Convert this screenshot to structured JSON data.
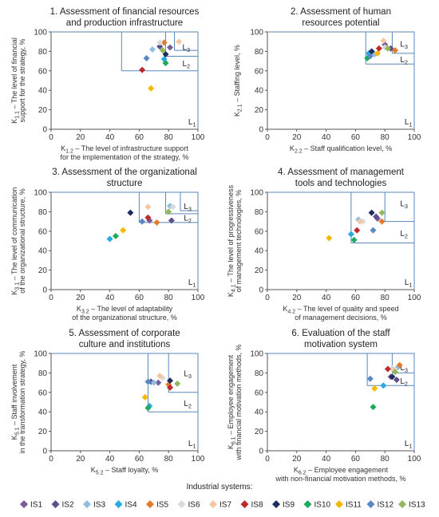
{
  "legend": {
    "title": "Industrial systems:",
    "entries": [
      {
        "name": "IS1",
        "color": "#7a5c99"
      },
      {
        "name": "IS2",
        "color": "#5b4f8c"
      },
      {
        "name": "IS3",
        "color": "#8fbfe0"
      },
      {
        "name": "IS4",
        "color": "#27a9e1"
      },
      {
        "name": "IS5",
        "color": "#e37b2a"
      },
      {
        "name": "IS6",
        "color": "#d9d9d9"
      },
      {
        "name": "IS7",
        "color": "#f6c6a2"
      },
      {
        "name": "IS8",
        "color": "#c0282d"
      },
      {
        "name": "IS9",
        "color": "#1f2e5c"
      },
      {
        "name": "IS10",
        "color": "#1aab5b"
      },
      {
        "name": "IS11",
        "color": "#f5b800"
      },
      {
        "name": "IS12",
        "color": "#5a87c5"
      },
      {
        "name": "IS13",
        "color": "#92b75a"
      }
    ]
  },
  "chart_data": [
    {
      "type": "scatter",
      "title": [
        "1. Assessment of financial resources",
        "and production infrastructure"
      ],
      "ylabel": [
        "K",
        "1.1",
        " – The level of financial",
        "support for the strategy, %"
      ],
      "xlabel": [
        "K",
        "1.2",
        " – The level of infrastructure support",
        "for the implementation of the strategy, %"
      ],
      "xlim": [
        0,
        100
      ],
      "ylim": [
        0,
        100
      ],
      "xticks": [
        "0",
        "20",
        "40",
        "60",
        "80",
        "100"
      ],
      "yticks": [
        "0",
        "20",
        "40",
        "60",
        "80",
        "100"
      ],
      "regions": [
        {
          "label": "L",
          "sub": "1",
          "x": 96,
          "y": 8
        },
        {
          "label": "L",
          "sub": "2",
          "x": 92,
          "y": 68
        },
        {
          "label": "L",
          "sub": "3",
          "x": 92,
          "y": 85
        }
      ],
      "boundaries": [
        [
          [
            0,
            100
          ],
          [
            100,
            100
          ],
          [
            100,
            0
          ]
        ],
        [
          [
            48,
            60
          ],
          [
            100,
            60
          ]
        ],
        [
          [
            48,
            60
          ],
          [
            48,
            100
          ]
        ],
        [
          [
            78,
            75
          ],
          [
            100,
            75
          ]
        ],
        [
          [
            78,
            75
          ],
          [
            78,
            100
          ]
        ],
        [
          [
            84,
            81
          ],
          [
            100,
            81
          ]
        ],
        [
          [
            84,
            81
          ],
          [
            84,
            100
          ]
        ]
      ],
      "points": [
        {
          "s": "IS1",
          "x": 81,
          "y": 84
        },
        {
          "s": "IS2",
          "x": 74,
          "y": 85
        },
        {
          "s": "IS3",
          "x": 69,
          "y": 82
        },
        {
          "s": "IS4",
          "x": 77,
          "y": 72
        },
        {
          "s": "IS5",
          "x": 77,
          "y": 89
        },
        {
          "s": "IS6",
          "x": 74,
          "y": 89
        },
        {
          "s": "IS7",
          "x": 87,
          "y": 90
        },
        {
          "s": "IS8",
          "x": 62,
          "y": 61
        },
        {
          "s": "IS9",
          "x": 78,
          "y": 77
        },
        {
          "s": "IS10",
          "x": 78,
          "y": 68
        },
        {
          "s": "IS11",
          "x": 68,
          "y": 42
        },
        {
          "s": "IS12",
          "x": 65,
          "y": 73
        },
        {
          "s": "IS13",
          "x": 76,
          "y": 81
        }
      ]
    },
    {
      "type": "scatter",
      "title": [
        "2. Assessment of human",
        "resources potential"
      ],
      "ylabel": [
        "K",
        "2.1",
        " – Staffing level, %"
      ],
      "xlabel": [
        "K",
        "2.2",
        " – Staff qualification level, %"
      ],
      "xlim": [
        0,
        100
      ],
      "ylim": [
        0,
        100
      ],
      "xticks": [
        "0",
        "20",
        "40",
        "60",
        "80",
        "100"
      ],
      "yticks": [
        "0",
        "20",
        "40",
        "60",
        "80",
        "100"
      ],
      "regions": [
        {
          "label": "L",
          "sub": "1",
          "x": 96,
          "y": 8
        },
        {
          "label": "L",
          "sub": "2",
          "x": 93,
          "y": 72
        },
        {
          "label": "L",
          "sub": "3",
          "x": 93,
          "y": 88
        }
      ],
      "boundaries": [
        [
          [
            0,
            100
          ],
          [
            100,
            100
          ],
          [
            100,
            0
          ]
        ],
        [
          [
            67,
            67
          ],
          [
            100,
            67
          ]
        ],
        [
          [
            67,
            67
          ],
          [
            67,
            100
          ]
        ],
        [
          [
            85,
            78
          ],
          [
            100,
            78
          ]
        ],
        [
          [
            85,
            78
          ],
          [
            85,
            100
          ]
        ]
      ],
      "points": [
        {
          "s": "IS1",
          "x": 80,
          "y": 87
        },
        {
          "s": "IS2",
          "x": 84,
          "y": 83
        },
        {
          "s": "IS3",
          "x": 73,
          "y": 77
        },
        {
          "s": "IS4",
          "x": 69,
          "y": 78
        },
        {
          "s": "IS5",
          "x": 87,
          "y": 81
        },
        {
          "s": "IS6",
          "x": 80,
          "y": 84
        },
        {
          "s": "IS7",
          "x": 79,
          "y": 91
        },
        {
          "s": "IS8",
          "x": 76,
          "y": 83
        },
        {
          "s": "IS9",
          "x": 71,
          "y": 80
        },
        {
          "s": "IS10",
          "x": 68,
          "y": 73
        },
        {
          "s": "IS11",
          "x": 75,
          "y": 78
        },
        {
          "s": "IS12",
          "x": 70,
          "y": 75
        },
        {
          "s": "IS13",
          "x": 82,
          "y": 83
        }
      ]
    },
    {
      "type": "scatter",
      "title": [
        "3. Assessment of the organizational",
        "structure"
      ],
      "ylabel": [
        "K",
        "3.1",
        " – The level of communication",
        "of the organizational structure, %"
      ],
      "xlabel": [
        "K",
        "3.2",
        " – The level of adaptability",
        "of the organizational structure, %"
      ],
      "xlim": [
        0,
        100
      ],
      "ylim": [
        0,
        100
      ],
      "xticks": [
        "0",
        "20",
        "40",
        "60",
        "80",
        "100"
      ],
      "yticks": [
        "0",
        "20",
        "40",
        "60",
        "80",
        "100"
      ],
      "regions": [
        {
          "label": "L",
          "sub": "1",
          "x": 96,
          "y": 8
        },
        {
          "label": "L",
          "sub": "2",
          "x": 93,
          "y": 74
        },
        {
          "label": "L",
          "sub": "3",
          "x": 93,
          "y": 86
        }
      ],
      "boundaries": [
        [
          [
            0,
            100
          ],
          [
            100,
            100
          ],
          [
            100,
            0
          ]
        ],
        [
          [
            60,
            69
          ],
          [
            100,
            69
          ]
        ],
        [
          [
            60,
            69
          ],
          [
            60,
            100
          ]
        ],
        [
          [
            78,
            78
          ],
          [
            100,
            78
          ]
        ],
        [
          [
            78,
            78
          ],
          [
            78,
            100
          ]
        ],
        [
          [
            88,
            81
          ],
          [
            100,
            81
          ]
        ],
        [
          [
            88,
            81
          ],
          [
            88,
            100
          ]
        ]
      ],
      "points": [
        {
          "s": "IS1",
          "x": 67,
          "y": 71
        },
        {
          "s": "IS2",
          "x": 82,
          "y": 71
        },
        {
          "s": "IS3",
          "x": 81,
          "y": 86
        },
        {
          "s": "IS4",
          "x": 40,
          "y": 52
        },
        {
          "s": "IS5",
          "x": 72,
          "y": 69
        },
        {
          "s": "IS6",
          "x": 83,
          "y": 85
        },
        {
          "s": "IS7",
          "x": 66,
          "y": 85
        },
        {
          "s": "IS8",
          "x": 66,
          "y": 74
        },
        {
          "s": "IS9",
          "x": 54,
          "y": 79
        },
        {
          "s": "IS10",
          "x": 44,
          "y": 55
        },
        {
          "s": "IS11",
          "x": 49,
          "y": 61
        },
        {
          "s": "IS12",
          "x": 62,
          "y": 70
        },
        {
          "s": "IS13",
          "x": 80,
          "y": 80
        }
      ]
    },
    {
      "type": "scatter",
      "title": [
        "4. Assessment of management",
        "tools and technologies"
      ],
      "ylabel": [
        "K",
        "4.1",
        " – The level of progressiveness",
        "of management technologies, %"
      ],
      "xlabel": [
        "K",
        "4.2",
        " – The level of quality and speed",
        "of management decisions, %"
      ],
      "xlim": [
        0,
        100
      ],
      "ylim": [
        0,
        100
      ],
      "xticks": [
        "0",
        "20",
        "40",
        "60",
        "80",
        "100"
      ],
      "yticks": [
        "0",
        "20",
        "40",
        "60",
        "80",
        "100"
      ],
      "regions": [
        {
          "label": "L",
          "sub": "1",
          "x": 96,
          "y": 8
        },
        {
          "label": "L",
          "sub": "2",
          "x": 93,
          "y": 58
        },
        {
          "label": "L",
          "sub": "3",
          "x": 93,
          "y": 89
        }
      ],
      "boundaries": [
        [
          [
            0,
            100
          ],
          [
            100,
            100
          ],
          [
            100,
            0
          ]
        ],
        [
          [
            57,
            48
          ],
          [
            100,
            48
          ]
        ],
        [
          [
            57,
            48
          ],
          [
            57,
            100
          ]
        ],
        [
          [
            80,
            70
          ],
          [
            100,
            70
          ]
        ],
        [
          [
            80,
            70
          ],
          [
            80,
            100
          ]
        ]
      ],
      "points": [
        {
          "s": "IS1",
          "x": 75,
          "y": 73
        },
        {
          "s": "IS2",
          "x": 74,
          "y": 75
        },
        {
          "s": "IS3",
          "x": 62,
          "y": 72
        },
        {
          "s": "IS4",
          "x": 57,
          "y": 57
        },
        {
          "s": "IS5",
          "x": 78,
          "y": 70
        },
        {
          "s": "IS6",
          "x": 65,
          "y": 70
        },
        {
          "s": "IS7",
          "x": 63,
          "y": 70
        },
        {
          "s": "IS8",
          "x": 61,
          "y": 61
        },
        {
          "s": "IS9",
          "x": 71,
          "y": 79
        },
        {
          "s": "IS10",
          "x": 59,
          "y": 51
        },
        {
          "s": "IS11",
          "x": 42,
          "y": 53
        },
        {
          "s": "IS12",
          "x": 72,
          "y": 61
        },
        {
          "s": "IS13",
          "x": 78,
          "y": 79
        }
      ]
    },
    {
      "type": "scatter",
      "title": [
        "5. Assessment of corporate",
        "culture and institutions"
      ],
      "ylabel": [
        "K",
        "5.1",
        " – Staff involvement",
        "in the transformation strategy, %"
      ],
      "xlabel": [
        "K",
        "5.2",
        " – Staff loyalty, %"
      ],
      "xlim": [
        0,
        100
      ],
      "ylim": [
        0,
        100
      ],
      "xticks": [
        "0",
        "20",
        "40",
        "60",
        "80",
        "100"
      ],
      "yticks": [
        "0",
        "20",
        "40",
        "60",
        "80",
        "100"
      ],
      "regions": [
        {
          "label": "L",
          "sub": "1",
          "x": 96,
          "y": 8
        },
        {
          "label": "L",
          "sub": "2",
          "x": 93,
          "y": 49
        },
        {
          "label": "L",
          "sub": "3",
          "x": 93,
          "y": 80
        }
      ],
      "boundaries": [
        [
          [
            0,
            100
          ],
          [
            100,
            100
          ],
          [
            100,
            0
          ]
        ],
        [
          [
            66,
            40
          ],
          [
            100,
            40
          ]
        ],
        [
          [
            66,
            40
          ],
          [
            66,
            100
          ]
        ],
        [
          [
            80,
            60
          ],
          [
            100,
            60
          ]
        ],
        [
          [
            80,
            60
          ],
          [
            80,
            100
          ]
        ]
      ],
      "points": [
        {
          "s": "IS1",
          "x": 73,
          "y": 70
        },
        {
          "s": "IS2",
          "x": 68,
          "y": 71
        },
        {
          "s": "IS3",
          "x": 70,
          "y": 70
        },
        {
          "s": "IS4",
          "x": 67,
          "y": 46
        },
        {
          "s": "IS5",
          "x": 80,
          "y": 68
        },
        {
          "s": "IS6",
          "x": 76,
          "y": 75
        },
        {
          "s": "IS7",
          "x": 74,
          "y": 77
        },
        {
          "s": "IS8",
          "x": 81,
          "y": 65
        },
        {
          "s": "IS9",
          "x": 81,
          "y": 72
        },
        {
          "s": "IS10",
          "x": 66,
          "y": 44
        },
        {
          "s": "IS11",
          "x": 64,
          "y": 55
        },
        {
          "s": "IS12",
          "x": 66,
          "y": 71
        },
        {
          "s": "IS13",
          "x": 86,
          "y": 69
        }
      ]
    },
    {
      "type": "scatter",
      "title": [
        "6. Evaluation of the staff",
        "motivation system"
      ],
      "ylabel": [
        "K",
        "6.1",
        " – Employee engagement",
        "with financial motivation methods, %"
      ],
      "xlabel": [
        "K",
        "6.2",
        " – Employee engagement",
        "with non-financial motivation methods, %"
      ],
      "xlim": [
        0,
        100
      ],
      "ylim": [
        0,
        100
      ],
      "xticks": [
        "0",
        "20",
        "40",
        "60",
        "80",
        "100"
      ],
      "yticks": [
        "0",
        "20",
        "40",
        "60",
        "80",
        "100"
      ],
      "regions": [
        {
          "label": "L",
          "sub": "1",
          "x": 96,
          "y": 8
        },
        {
          "label": "L",
          "sub": "2",
          "x": 93,
          "y": 72
        },
        {
          "label": "L",
          "sub": "3",
          "x": 93,
          "y": 86
        }
      ],
      "boundaries": [
        [
          [
            0,
            100
          ],
          [
            100,
            100
          ],
          [
            100,
            0
          ]
        ],
        [
          [
            68,
            67
          ],
          [
            100,
            67
          ]
        ],
        [
          [
            68,
            67
          ],
          [
            68,
            100
          ]
        ],
        [
          [
            85,
            80
          ],
          [
            100,
            80
          ]
        ],
        [
          [
            85,
            80
          ],
          [
            85,
            100
          ]
        ]
      ],
      "points": [
        {
          "s": "IS1",
          "x": 84,
          "y": 76
        },
        {
          "s": "IS2",
          "x": 88,
          "y": 73
        },
        {
          "s": "IS3",
          "x": 89,
          "y": 86
        },
        {
          "s": "IS4",
          "x": 79,
          "y": 67
        },
        {
          "s": "IS5",
          "x": 90,
          "y": 88
        },
        {
          "s": "IS6",
          "x": 85,
          "y": 85
        },
        {
          "s": "IS7",
          "x": 86,
          "y": 83
        },
        {
          "s": "IS8",
          "x": 82,
          "y": 84
        },
        {
          "s": "IS9",
          "x": 85,
          "y": 76
        },
        {
          "s": "IS10",
          "x": 72,
          "y": 45
        },
        {
          "s": "IS11",
          "x": 73,
          "y": 64
        },
        {
          "s": "IS12",
          "x": 70,
          "y": 74
        },
        {
          "s": "IS13",
          "x": 87,
          "y": 81
        }
      ]
    }
  ]
}
